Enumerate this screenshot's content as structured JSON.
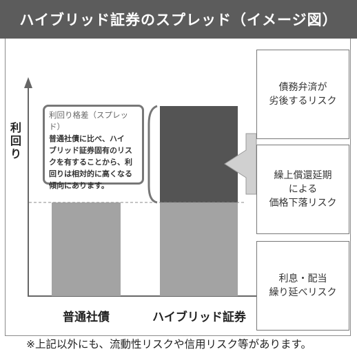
{
  "title": "ハイブリッド証券のスプレッド（イメージ図）",
  "y_axis_label": [
    "利",
    "回",
    "り"
  ],
  "bars": [
    {
      "label": "普通社債",
      "base_yield": 1.0
    },
    {
      "label": "ハイブリッド証券",
      "base_yield": 1.0,
      "spread": 1.0
    }
  ],
  "callout": {
    "title": "利回り格差（スプレッド）",
    "lines": [
      "普通社債に比べ、ハイ",
      "ブリッド証券固有のリス",
      "クを有することから、利",
      "回りは相対的に高くなる",
      "傾向にあります。"
    ]
  },
  "risks": [
    "債務弁済が\n劣後するリスク",
    "繰上償還延期\nによる\n価格下落リスク",
    "利息・配当\n繰り延べリスク"
  ],
  "footnote": "※上記以外にも、流動性リスクや信用リスク等があります。",
  "colors": {
    "header_bg": "#5c5c5c",
    "bar_light": "#a3a3a3",
    "bar_dark": "#545454",
    "arrow": "#c8c8c8"
  }
}
